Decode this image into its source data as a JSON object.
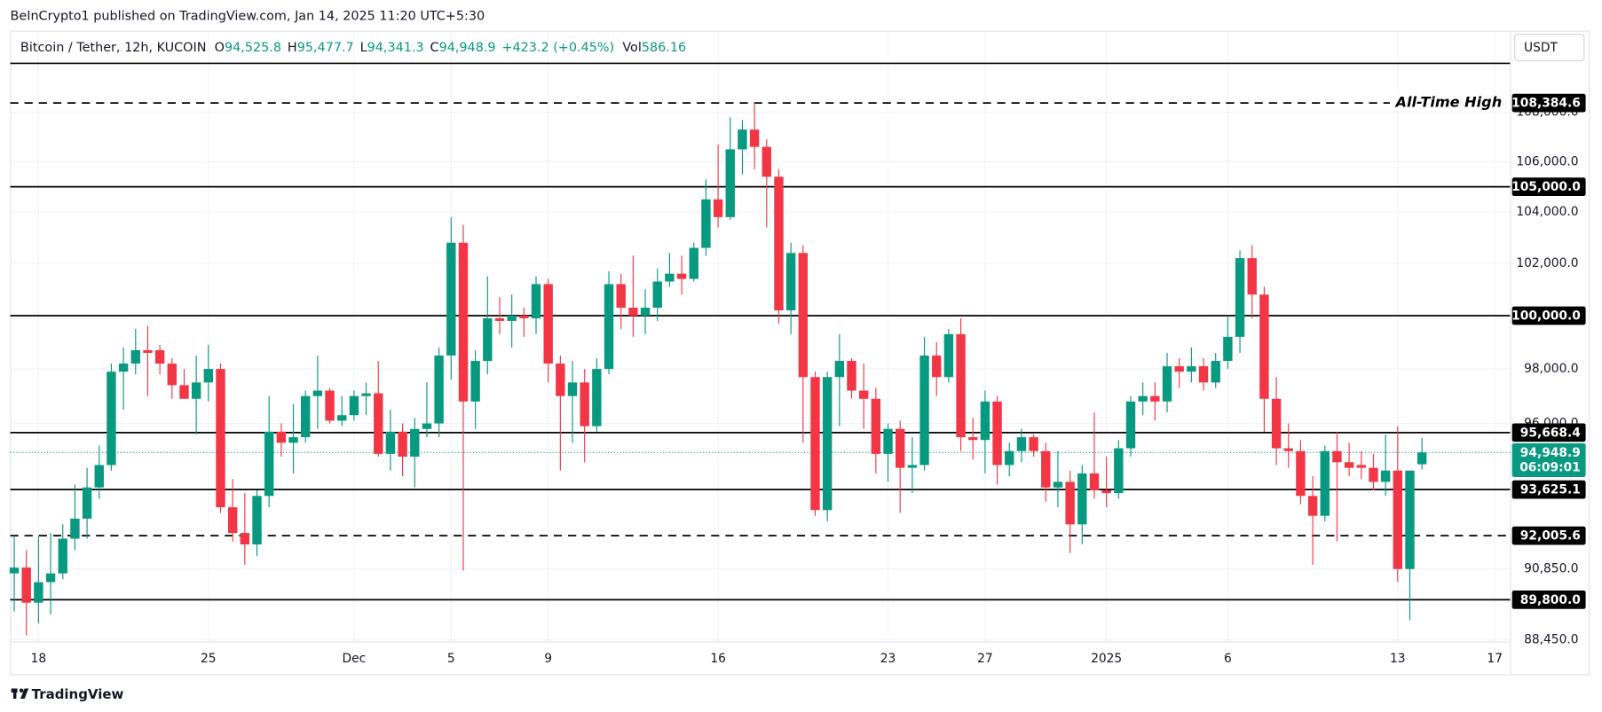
{
  "header": {
    "publisher": "BeInCrypto1 published on TradingView.com, Jan 14, 2025 11:20 UTC+5:30"
  },
  "footer": {
    "brand": "TradingView"
  },
  "chart_data": {
    "type": "candlestick",
    "log_scale": true,
    "grid": true,
    "symbol": "Bitcoin / Tether, 12h, KUCOIN",
    "ohlc_legend": [
      {
        "key": "O",
        "value": "94,525.8"
      },
      {
        "key": "H",
        "value": "95,477.7"
      },
      {
        "key": "L",
        "value": "94,341.3"
      },
      {
        "key": "C",
        "value": "94,948.9"
      }
    ],
    "change": "+423.2 (+0.45%)",
    "volume": {
      "key": "Vol",
      "value": "586.16"
    },
    "currency": "USDT",
    "up_color": "#089981",
    "down_color": "#f23645",
    "ylim": [
      88390,
      110110
    ],
    "yticks": [
      {
        "value": 88450,
        "label": "88,450.0"
      },
      {
        "value": 90850,
        "label": "90,850.0"
      },
      {
        "value": 96000,
        "label": "96,000.0"
      },
      {
        "value": 98000,
        "label": "98,000.0"
      },
      {
        "value": 102000,
        "label": "102,000.0"
      },
      {
        "value": 104000,
        "label": "104,000.0"
      },
      {
        "value": 106000,
        "label": "106,000.0"
      },
      {
        "value": 108000,
        "label": "108,000.0"
      }
    ],
    "levels": [
      {
        "value": 108384.6,
        "label": "108,384.6",
        "dashed": true,
        "annotation": "All-Time High"
      },
      {
        "value": 105000,
        "label": "105,000.0",
        "dashed": false
      },
      {
        "value": 100000,
        "label": "100,000.0",
        "dashed": false
      },
      {
        "value": 95668.4,
        "label": "95,668.4",
        "dashed": false
      },
      {
        "value": 93625.1,
        "label": "93,625.1",
        "dashed": false
      },
      {
        "value": 92005.6,
        "label": "92,005.6",
        "dashed": true
      },
      {
        "value": 89800,
        "label": "89,800.0",
        "dashed": false
      }
    ],
    "last_price": {
      "value": 94948.9,
      "label": "94,948.9",
      "countdown": "06:09:01"
    },
    "categories": [
      null,
      null,
      "18",
      null,
      null,
      null,
      null,
      null,
      null,
      null,
      null,
      null,
      null,
      null,
      null,
      null,
      "25",
      null,
      null,
      null,
      null,
      null,
      null,
      null,
      null,
      null,
      null,
      null,
      "Dec",
      null,
      null,
      null,
      null,
      null,
      null,
      null,
      "5",
      null,
      null,
      null,
      null,
      null,
      null,
      null,
      "9",
      null,
      null,
      null,
      null,
      null,
      null,
      null,
      null,
      null,
      null,
      null,
      null,
      null,
      "16",
      null,
      null,
      null,
      null,
      null,
      null,
      null,
      null,
      null,
      null,
      null,
      null,
      null,
      "23",
      null,
      null,
      null,
      null,
      null,
      null,
      null,
      "27",
      null,
      null,
      null,
      null,
      null,
      null,
      null,
      null,
      null,
      "2025",
      null,
      null,
      null,
      null,
      null,
      null,
      null,
      null,
      null,
      "6",
      null,
      null,
      null,
      null,
      null,
      null,
      null,
      null,
      null,
      null,
      null,
      null,
      null,
      "13",
      null,
      null,
      null,
      null,
      null,
      null,
      null,
      "17"
    ],
    "open": [
      90700,
      90900,
      89700,
      90400,
      90700,
      91900,
      92600,
      93700,
      94500,
      97900,
      98200,
      98700,
      98700,
      98200,
      97400,
      96900,
      97500,
      98000,
      93000,
      92100,
      91700,
      93400,
      95700,
      95300,
      95500,
      97000,
      97200,
      96100,
      96300,
      97000,
      97100,
      94900,
      95700,
      94800,
      95800,
      96000,
      98500,
      102800,
      96800,
      98300,
      99900,
      99800,
      100000,
      99900,
      101200,
      98200,
      97000,
      97500,
      95900,
      98000,
      101200,
      100300,
      100000,
      100300,
      101300,
      101600,
      101400,
      102600,
      104500,
      103800,
      106500,
      107300,
      106600,
      105400,
      100200,
      102400,
      97700,
      92900,
      97700,
      98300,
      97200,
      96900,
      94900,
      95800,
      94400,
      94500,
      98500,
      97700,
      99300,
      95500,
      95400,
      96800,
      94500,
      95000,
      95500,
      95000,
      93700,
      93900,
      92400,
      94200,
      93600,
      93500,
      95100,
      96800,
      97000,
      96800,
      98100,
      97900,
      98100,
      97500,
      98300,
      99200,
      102200,
      100800,
      96900,
      95100,
      95000,
      93400,
      92700,
      95000,
      94600,
      94500,
      94400,
      93900,
      94300,
      90850,
      94525.8,
      null,
      null,
      null,
      null,
      null,
      null
    ],
    "high": [
      92000,
      91500,
      92000,
      92100,
      92400,
      93800,
      94400,
      95200,
      98200,
      98800,
      99500,
      99600,
      98900,
      98400,
      98000,
      98500,
      98900,
      98200,
      94000,
      93500,
      93600,
      97000,
      96000,
      96700,
      97200,
      98500,
      97300,
      97000,
      97200,
      97500,
      98300,
      96500,
      96000,
      96200,
      97500,
      98800,
      103800,
      103500,
      98700,
      101500,
      100700,
      100800,
      100300,
      101500,
      101400,
      98500,
      98300,
      98000,
      98400,
      101700,
      101600,
      102300,
      101000,
      101800,
      102400,
      102300,
      102800,
      105300,
      106700,
      107800,
      107700,
      108384.6,
      106900,
      105700,
      102800,
      102700,
      97900,
      97900,
      99300,
      98400,
      98200,
      97300,
      96000,
      96100,
      95500,
      99200,
      99000,
      99500,
      99900,
      96200,
      97200,
      97000,
      95300,
      95800,
      95600,
      95300,
      95000,
      94300,
      94500,
      96400,
      94800,
      95400,
      97000,
      97500,
      97500,
      98600,
      98400,
      98800,
      98400,
      98600,
      100000,
      102500,
      102700,
      101100,
      97700,
      96000,
      95400,
      94100,
      95200,
      95700,
      95300,
      95000,
      94900,
      95600,
      95900,
      94300,
      95477.7,
      null,
      null,
      null,
      null,
      null,
      null
    ],
    "low": [
      89400,
      88600,
      89000,
      89300,
      90500,
      91500,
      91900,
      93300,
      94300,
      96500,
      97800,
      97000,
      97800,
      96900,
      96900,
      95600,
      96800,
      92800,
      91800,
      91000,
      91300,
      93000,
      94800,
      94200,
      95300,
      95800,
      96000,
      95900,
      96100,
      96300,
      94800,
      94300,
      94100,
      93700,
      95500,
      95500,
      97600,
      90800,
      95800,
      97800,
      99300,
      98800,
      99200,
      99300,
      97500,
      94300,
      95300,
      94600,
      95700,
      97800,
      99500,
      99200,
      99300,
      99800,
      101100,
      100800,
      101300,
      102300,
      103400,
      103700,
      105500,
      105700,
      103400,
      99700,
      99300,
      95300,
      92700,
      92500,
      95900,
      96900,
      95800,
      94200,
      93900,
      92800,
      93500,
      94300,
      97000,
      97500,
      95000,
      94700,
      94200,
      93800,
      94100,
      94600,
      94800,
      93200,
      93000,
      91400,
      91700,
      93300,
      93000,
      93300,
      94800,
      96300,
      96100,
      96400,
      97300,
      97500,
      97200,
      97300,
      98000,
      98600,
      99900,
      95700,
      94500,
      94400,
      93100,
      91000,
      92500,
      91800,
      94100,
      94000,
      93600,
      93400,
      90400,
      89100,
      94341.3,
      null,
      null,
      null,
      null,
      null,
      null
    ],
    "close": [
      90900,
      89700,
      90400,
      90700,
      91900,
      92600,
      93700,
      94500,
      97900,
      98200,
      98700,
      98600,
      98200,
      97400,
      96900,
      97500,
      98000,
      93000,
      92100,
      91700,
      93400,
      95700,
      95300,
      95500,
      97000,
      97200,
      96100,
      96300,
      97000,
      97100,
      94900,
      95700,
      94800,
      95800,
      96000,
      98500,
      102800,
      96800,
      98300,
      99900,
      99800,
      100000,
      99900,
      101200,
      98200,
      97000,
      97500,
      95900,
      98000,
      101200,
      100300,
      100000,
      100300,
      101300,
      101600,
      101400,
      102600,
      104500,
      103800,
      106500,
      107300,
      106600,
      105400,
      100200,
      102400,
      97700,
      92900,
      97700,
      98300,
      97200,
      96900,
      94900,
      95800,
      94400,
      94500,
      98500,
      97700,
      99300,
      95500,
      95400,
      96800,
      94500,
      95000,
      95500,
      95000,
      93700,
      93900,
      92400,
      94200,
      93600,
      93500,
      95100,
      96800,
      97000,
      96800,
      98100,
      97900,
      98100,
      97500,
      98300,
      99200,
      102200,
      100800,
      96900,
      95100,
      95000,
      93400,
      92700,
      95000,
      94600,
      94400,
      94400,
      93900,
      94300,
      90850,
      94300,
      94948.9,
      null,
      null,
      null,
      null,
      null,
      null
    ]
  }
}
